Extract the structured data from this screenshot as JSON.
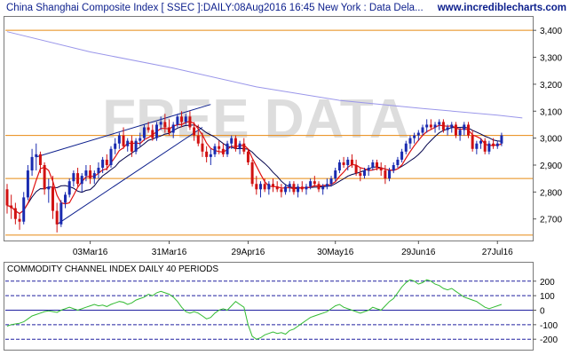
{
  "header": {
    "title": "China Shanghai Composite Index [ SSEC ]:DAILY:08Aug2016 16:45 New York : Data Dela...",
    "site": "www.incrediblecharts.com"
  },
  "colors": {
    "price_up": "#1a2bb0",
    "price_down": "#d11111",
    "ma_short": "#e01010",
    "ma_medium": "#00004a",
    "ma_long": "#9a96ea",
    "support_lines": "#e88a10",
    "trend_lines": "#0b1e8c",
    "cci_line": "#33bb33",
    "cci_levels": "#2020a0",
    "watermark": "#dddddd"
  },
  "chart_data": [
    {
      "type": "candlestick",
      "watermark": "FREE DATA",
      "ylim": [
        2620,
        3450
      ],
      "y_ticks": [
        "3,400",
        "3,300",
        "3,200",
        "3,100",
        "3,000",
        "2,900",
        "2,800",
        "2,700"
      ],
      "y_tick_values": [
        3400,
        3300,
        3200,
        3100,
        3000,
        2900,
        2800,
        2700
      ],
      "x_ticks": [
        "03Mar16",
        "31Mar16",
        "29Apr16",
        "30May16",
        "29Jun16",
        "27Jul16"
      ],
      "x_tick_index": [
        20,
        39,
        58,
        79,
        99,
        118
      ],
      "horizontal_lines": [
        3400,
        3010,
        2850,
        2640
      ],
      "candles": [
        [
          2810,
          2830,
          2720,
          2750
        ],
        [
          2750,
          2790,
          2700,
          2740
        ],
        [
          2740,
          2760,
          2680,
          2700
        ],
        [
          2700,
          2720,
          2660,
          2690
        ],
        [
          2690,
          2800,
          2680,
          2780
        ],
        [
          2780,
          2900,
          2770,
          2880
        ],
        [
          2880,
          2960,
          2860,
          2930
        ],
        [
          2930,
          2980,
          2880,
          2940
        ],
        [
          2940,
          2950,
          2870,
          2900
        ],
        [
          2900,
          2910,
          2790,
          2810
        ],
        [
          2810,
          2850,
          2760,
          2820
        ],
        [
          2820,
          2860,
          2700,
          2730
        ],
        [
          2730,
          2760,
          2650,
          2680
        ],
        [
          2680,
          2770,
          2670,
          2760
        ],
        [
          2760,
          2800,
          2740,
          2790
        ],
        [
          2790,
          2850,
          2780,
          2840
        ],
        [
          2840,
          2880,
          2820,
          2870
        ],
        [
          2870,
          2890,
          2820,
          2830
        ],
        [
          2830,
          2870,
          2800,
          2860
        ],
        [
          2860,
          2900,
          2840,
          2880
        ],
        [
          2880,
          2900,
          2830,
          2850
        ],
        [
          2850,
          2880,
          2830,
          2870
        ],
        [
          2870,
          2910,
          2850,
          2890
        ],
        [
          2890,
          2930,
          2870,
          2920
        ],
        [
          2920,
          2940,
          2880,
          2900
        ],
        [
          2900,
          2970,
          2890,
          2960
        ],
        [
          2960,
          3000,
          2940,
          2980
        ],
        [
          2980,
          3020,
          2960,
          3010
        ],
        [
          3010,
          3040,
          2960,
          2970
        ],
        [
          2970,
          3000,
          2950,
          2990
        ],
        [
          2990,
          3010,
          2930,
          2950
        ],
        [
          2950,
          3000,
          2940,
          2990
        ],
        [
          2990,
          3020,
          2970,
          3000
        ],
        [
          3000,
          3050,
          2990,
          3040
        ],
        [
          3040,
          3060,
          3020,
          3030
        ],
        [
          3030,
          3050,
          2990,
          3000
        ],
        [
          3000,
          3060,
          2990,
          3050
        ],
        [
          3050,
          3080,
          3030,
          3060
        ],
        [
          3060,
          3090,
          3020,
          3040
        ],
        [
          3040,
          3070,
          3010,
          3020
        ],
        [
          3020,
          3060,
          3000,
          3050
        ],
        [
          3050,
          3090,
          3040,
          3080
        ],
        [
          3080,
          3100,
          3040,
          3060
        ],
        [
          3060,
          3090,
          3050,
          3080
        ],
        [
          3080,
          3100,
          3030,
          3040
        ],
        [
          3040,
          3060,
          2990,
          3010
        ],
        [
          3010,
          3050,
          2970,
          2980
        ],
        [
          2980,
          3020,
          2930,
          2950
        ],
        [
          2950,
          2970,
          2910,
          2930
        ],
        [
          2930,
          2960,
          2900,
          2940
        ],
        [
          2940,
          2980,
          2930,
          2970
        ],
        [
          2970,
          2990,
          2940,
          2960
        ],
        [
          2960,
          2980,
          2930,
          2940
        ],
        [
          2940,
          2990,
          2930,
          2980
        ],
        [
          2980,
          3010,
          2960,
          3000
        ],
        [
          3000,
          3010,
          2950,
          2960
        ],
        [
          2960,
          2990,
          2940,
          2980
        ],
        [
          2980,
          3000,
          2940,
          2950
        ],
        [
          2950,
          2960,
          2900,
          2910
        ],
        [
          2910,
          2920,
          2820,
          2830
        ],
        [
          2830,
          2860,
          2790,
          2810
        ],
        [
          2810,
          2840,
          2780,
          2830
        ],
        [
          2830,
          2850,
          2800,
          2810
        ],
        [
          2810,
          2840,
          2790,
          2830
        ],
        [
          2830,
          2850,
          2800,
          2820
        ],
        [
          2820,
          2840,
          2800,
          2810
        ],
        [
          2810,
          2830,
          2780,
          2800
        ],
        [
          2800,
          2830,
          2790,
          2820
        ],
        [
          2820,
          2840,
          2800,
          2830
        ],
        [
          2830,
          2840,
          2790,
          2800
        ],
        [
          2800,
          2830,
          2780,
          2820
        ],
        [
          2820,
          2840,
          2800,
          2810
        ],
        [
          2810,
          2830,
          2790,
          2820
        ],
        [
          2820,
          2850,
          2810,
          2840
        ],
        [
          2840,
          2860,
          2820,
          2830
        ],
        [
          2830,
          2840,
          2800,
          2810
        ],
        [
          2810,
          2830,
          2790,
          2820
        ],
        [
          2820,
          2850,
          2810,
          2830
        ],
        [
          2830,
          2860,
          2820,
          2850
        ],
        [
          2850,
          2890,
          2840,
          2880
        ],
        [
          2880,
          2920,
          2870,
          2910
        ],
        [
          2910,
          2930,
          2890,
          2900
        ],
        [
          2900,
          2930,
          2880,
          2920
        ],
        [
          2920,
          2940,
          2890,
          2900
        ],
        [
          2900,
          2920,
          2860,
          2870
        ],
        [
          2870,
          2890,
          2840,
          2860
        ],
        [
          2860,
          2890,
          2850,
          2880
        ],
        [
          2880,
          2900,
          2860,
          2890
        ],
        [
          2890,
          2920,
          2880,
          2910
        ],
        [
          2910,
          2920,
          2880,
          2890
        ],
        [
          2890,
          2910,
          2860,
          2880
        ],
        [
          2880,
          2900,
          2830,
          2850
        ],
        [
          2850,
          2890,
          2840,
          2880
        ],
        [
          2880,
          2910,
          2870,
          2900
        ],
        [
          2900,
          2930,
          2890,
          2920
        ],
        [
          2920,
          2960,
          2910,
          2950
        ],
        [
          2950,
          2990,
          2940,
          2980
        ],
        [
          2980,
          3010,
          2960,
          3000
        ],
        [
          3000,
          3020,
          2980,
          3010
        ],
        [
          3010,
          3030,
          2990,
          3020
        ],
        [
          3020,
          3050,
          3010,
          3040
        ],
        [
          3040,
          3070,
          3020,
          3050
        ],
        [
          3050,
          3070,
          3030,
          3040
        ],
        [
          3040,
          3060,
          3020,
          3050
        ],
        [
          3050,
          3070,
          3030,
          3060
        ],
        [
          3060,
          3070,
          3020,
          3030
        ],
        [
          3030,
          3050,
          3010,
          3040
        ],
        [
          3040,
          3060,
          3020,
          3050
        ],
        [
          3050,
          3060,
          3000,
          3010
        ],
        [
          3010,
          3040,
          2990,
          3030
        ],
        [
          3030,
          3060,
          3010,
          3050
        ],
        [
          3050,
          3060,
          3000,
          3010
        ],
        [
          3010,
          3030,
          2950,
          2960
        ],
        [
          2960,
          2990,
          2940,
          2980
        ],
        [
          2980,
          3000,
          2960,
          2990
        ],
        [
          2990,
          3000,
          2940,
          2950
        ],
        [
          2950,
          2990,
          2940,
          2980
        ],
        [
          2980,
          3000,
          2960,
          2970
        ],
        [
          2970,
          2990,
          2960,
          2980
        ],
        [
          2980,
          3020,
          2970,
          3010
        ]
      ],
      "ma_long_points": [
        [
          0,
          3395
        ],
        [
          20,
          3320
        ],
        [
          40,
          3260
        ],
        [
          60,
          3190
        ],
        [
          80,
          3140
        ],
        [
          100,
          3110
        ],
        [
          118,
          3085
        ],
        [
          124,
          3075
        ]
      ],
      "trend_lines": [
        {
          "from": [
            7,
            2930
          ],
          "to": [
            49,
            3125
          ]
        },
        {
          "from": [
            12,
            2680
          ],
          "to": [
            47,
            3040
          ]
        }
      ]
    },
    {
      "type": "line",
      "title": "COMMODITY CHANNEL INDEX DAILY 40 PERIODS",
      "ylim": [
        -260,
        260
      ],
      "y_ticks": [
        "200",
        "100",
        "0",
        "-100",
        "-200"
      ],
      "y_tick_values": [
        200,
        100,
        0,
        -100,
        -200
      ],
      "levels": [
        200,
        100,
        0,
        -100,
        -200
      ],
      "values": [
        -110,
        -100,
        -95,
        -90,
        -80,
        -60,
        -40,
        -30,
        -20,
        -10,
        -5,
        -10,
        -15,
        0,
        10,
        20,
        10,
        0,
        10,
        20,
        30,
        40,
        30,
        35,
        25,
        40,
        50,
        60,
        55,
        40,
        50,
        70,
        80,
        90,
        110,
        100,
        120,
        130,
        120,
        110,
        90,
        60,
        20,
        -10,
        -20,
        -10,
        -20,
        -40,
        -60,
        -50,
        -20,
        0,
        10,
        0,
        30,
        60,
        40,
        20,
        -100,
        -180,
        -200,
        -190,
        -170,
        -160,
        -150,
        -160,
        -155,
        -165,
        -140,
        -130,
        -110,
        -90,
        -70,
        -50,
        -40,
        -30,
        -20,
        -10,
        10,
        30,
        40,
        20,
        10,
        0,
        -10,
        -20,
        -10,
        0,
        20,
        10,
        0,
        30,
        60,
        80,
        120,
        160,
        190,
        210,
        200,
        180,
        190,
        210,
        200,
        180,
        170,
        150,
        140,
        150,
        130,
        110,
        90,
        80,
        70,
        60,
        40,
        20,
        10,
        20,
        30,
        40
      ]
    }
  ]
}
